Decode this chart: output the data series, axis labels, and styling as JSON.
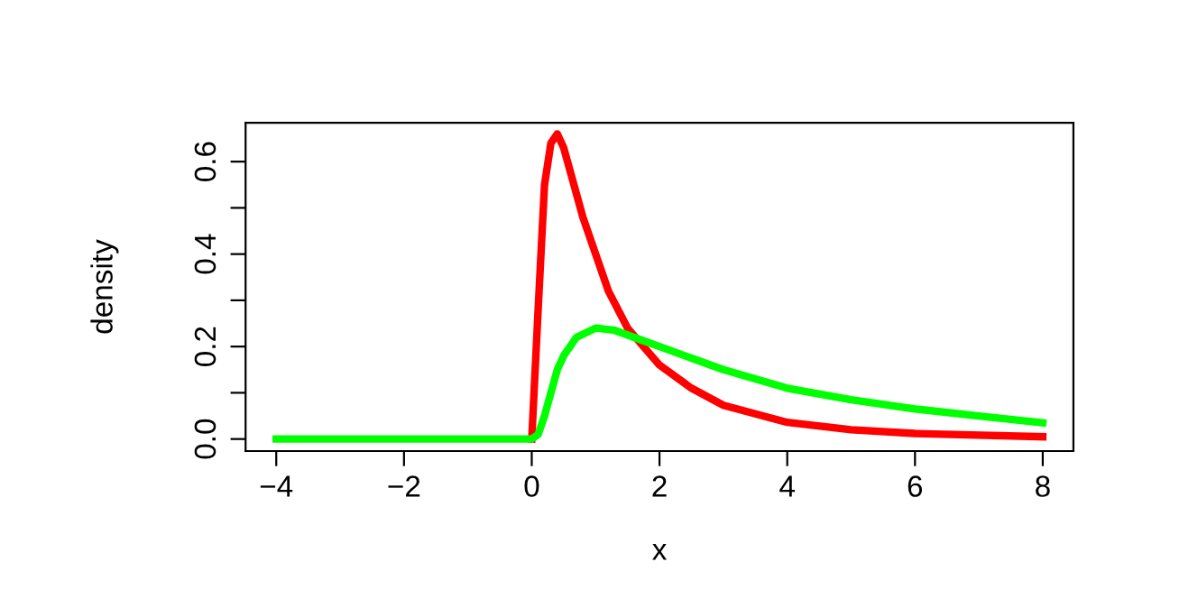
{
  "chart_data": {
    "type": "line",
    "xlabel": "x",
    "ylabel": "density",
    "xlim": [
      -4.48,
      8.48
    ],
    "ylim": [
      -0.026,
      0.684
    ],
    "xticks": [
      -4,
      -2,
      0,
      2,
      4,
      6,
      8
    ],
    "yticks": [
      {
        "value": 0.0,
        "label": "0.0"
      },
      {
        "value": 0.2,
        "label": "0.2"
      },
      {
        "value": 0.4,
        "label": "0.4"
      },
      {
        "value": 0.6,
        "label": "0.6"
      },
      {
        "value": 0.1,
        "label": null
      },
      {
        "value": 0.3,
        "label": null
      },
      {
        "value": 0.5,
        "label": null
      }
    ],
    "grid": false,
    "legend": false,
    "line_style": "solid",
    "marker": "none",
    "series": [
      {
        "color": "#ff0000",
        "x": [
          0,
          0.1,
          0.2,
          0.3,
          0.4,
          0.5,
          0.6,
          0.8,
          1,
          1.2,
          1.5,
          2,
          2.5,
          3,
          4,
          5,
          6,
          8
        ],
        "values": [
          0,
          0.28,
          0.55,
          0.64,
          0.66,
          0.63,
          0.58,
          0.48,
          0.4,
          0.32,
          0.24,
          0.16,
          0.11,
          0.073,
          0.036,
          0.02,
          0.012,
          0.005
        ]
      },
      {
        "color": "#00ff00",
        "x": [
          -4,
          -2,
          0,
          0.1,
          0.2,
          0.3,
          0.4,
          0.5,
          0.7,
          1,
          1.3,
          1.7,
          2,
          2.5,
          3,
          3.5,
          4,
          5,
          6,
          7,
          8
        ],
        "values": [
          0,
          0,
          0,
          0.01,
          0.05,
          0.1,
          0.15,
          0.18,
          0.22,
          0.24,
          0.235,
          0.215,
          0.2,
          0.175,
          0.15,
          0.13,
          0.11,
          0.085,
          0.065,
          0.05,
          0.035
        ]
      }
    ]
  }
}
